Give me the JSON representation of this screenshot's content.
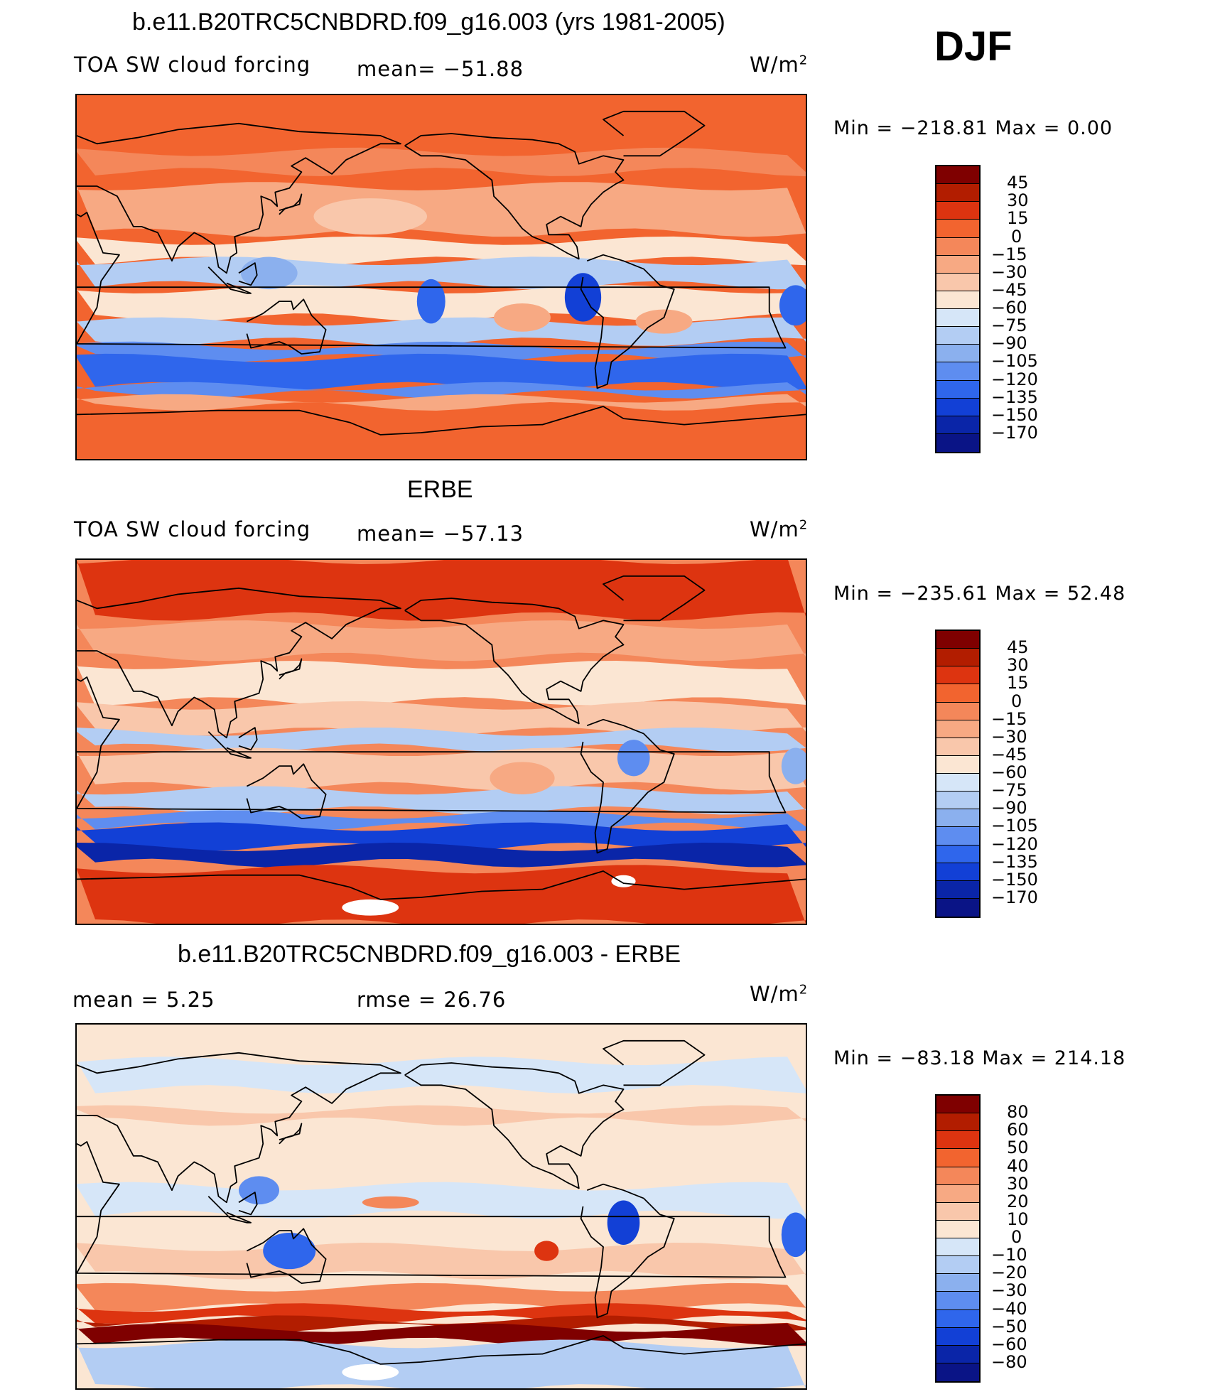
{
  "season": "DJF",
  "units": "W/m",
  "units_sup": "2",
  "panels": [
    {
      "title": "b.e11.B20TRC5CNBDRD.f09_g16.003 (yrs 1981-2005)",
      "left_label": "TOA SW cloud forcing",
      "mid_label": "mean=  −51.88",
      "min_max": "Min  =  −218.81  Max  =     0.00",
      "levels": [
        "45",
        "30",
        "15",
        "0",
        "−15",
        "−30",
        "−45",
        "−60",
        "−75",
        "−90",
        "−105",
        "−120",
        "−135",
        "−150",
        "−170"
      ],
      "colors": [
        "#7f0000",
        "#b21d00",
        "#dd3410",
        "#f2642f",
        "#f4875a",
        "#f7a983",
        "#f9c7ab",
        "#fbe6d3",
        "#d6e6f8",
        "#b3cdf3",
        "#8bb0ee",
        "#5e8df0",
        "#2f66ec",
        "#1240d6",
        "#0a25a8",
        "#0a1486"
      ]
    },
    {
      "title": "ERBE",
      "left_label": "TOA SW cloud forcing",
      "mid_label": "mean=  −57.13",
      "min_max": "Min  =  −235.61  Max  =   52.48",
      "levels": [
        "45",
        "30",
        "15",
        "0",
        "−15",
        "−30",
        "−45",
        "−60",
        "−75",
        "−90",
        "−105",
        "−120",
        "−135",
        "−150",
        "−170"
      ],
      "colors": [
        "#7f0000",
        "#b21d00",
        "#dd3410",
        "#f2642f",
        "#f4875a",
        "#f7a983",
        "#f9c7ab",
        "#fbe6d3",
        "#d6e6f8",
        "#b3cdf3",
        "#8bb0ee",
        "#5e8df0",
        "#2f66ec",
        "#1240d6",
        "#0a25a8",
        "#0a1486"
      ]
    },
    {
      "title": "b.e11.B20TRC5CNBDRD.f09_g16.003 - ERBE",
      "left_label": "mean =      5.25",
      "mid_label": "rmse  =   26.76",
      "min_max": "Min  =  −83.18  Max  =  214.18",
      "levels": [
        "80",
        "60",
        "50",
        "40",
        "30",
        "20",
        "10",
        "0",
        "−10",
        "−20",
        "−30",
        "−40",
        "−50",
        "−60",
        "−80"
      ],
      "colors": [
        "#7f0000",
        "#b21d00",
        "#dd3410",
        "#f2642f",
        "#f4875a",
        "#f7a983",
        "#f9c7ab",
        "#fbe6d3",
        "#d6e6f8",
        "#b3cdf3",
        "#8bb0ee",
        "#5e8df0",
        "#2f66ec",
        "#1240d6",
        "#0a25a8",
        "#0a1486"
      ]
    }
  ],
  "map_fields": {
    "p0": {
      "background": "#f2642f",
      "bands": [
        {
          "color": "#f4875a",
          "lat_top": 62,
          "lat_bottom": 52
        },
        {
          "color": "#f7a983",
          "lat_top": 45,
          "lat_bottom": 22
        },
        {
          "color": "#fbe6d3",
          "lat_top": 18,
          "lat_bottom": 8
        },
        {
          "color": "#b3cdf3",
          "lat_top": 8,
          "lat_bottom": -4
        },
        {
          "color": "#fbe6d3",
          "lat_top": -6,
          "lat_bottom": -20
        },
        {
          "color": "#b3cdf3",
          "lat_top": -22,
          "lat_bottom": -32
        },
        {
          "color": "#5e8df0",
          "lat_top": -34,
          "lat_bottom": -40
        },
        {
          "color": "#2f66ec",
          "lat_top": -40,
          "lat_bottom": -54
        },
        {
          "color": "#5e8df0",
          "lat_top": -54,
          "lat_bottom": -58
        },
        {
          "color": "#f7a983",
          "lat_top": -60,
          "lat_bottom": -64
        }
      ],
      "blobs": [
        {
          "color": "#2f66ec",
          "lon": 205,
          "lat": -12,
          "rx": 7,
          "ry": 11
        },
        {
          "color": "#1240d6",
          "lon": 280,
          "lat": -10,
          "rx": 9,
          "ry": 12
        },
        {
          "color": "#2f66ec",
          "lon": 25,
          "lat": -14,
          "rx": 8,
          "ry": 10
        },
        {
          "color": "#8bb0ee",
          "lon": 125,
          "lat": 2,
          "rx": 14,
          "ry": 8
        },
        {
          "color": "#f7a983",
          "lon": 250,
          "lat": -20,
          "rx": 14,
          "ry": 7
        },
        {
          "color": "#f7a983",
          "lon": 320,
          "lat": -22,
          "rx": 14,
          "ry": 6
        },
        {
          "color": "#f9c7ab",
          "lon": 175,
          "lat": 30,
          "rx": 28,
          "ry": 9
        }
      ]
    },
    "p1": {
      "background": "#f4875a",
      "bands": [
        {
          "color": "#dd3410",
          "lat_top": 90,
          "lat_bottom": 62
        },
        {
          "color": "#f7a983",
          "lat_top": 58,
          "lat_bottom": 42
        },
        {
          "color": "#fbe6d3",
          "lat_top": 38,
          "lat_bottom": 20
        },
        {
          "color": "#f9c7ab",
          "lat_top": 18,
          "lat_bottom": 5
        },
        {
          "color": "#b3cdf3",
          "lat_top": 5,
          "lat_bottom": -3
        },
        {
          "color": "#f9c7ab",
          "lat_top": -5,
          "lat_bottom": -22
        },
        {
          "color": "#b3cdf3",
          "lat_top": -24,
          "lat_bottom": -34
        },
        {
          "color": "#5e8df0",
          "lat_top": -36,
          "lat_bottom": -42
        },
        {
          "color": "#1240d6",
          "lat_top": -42,
          "lat_bottom": -52
        },
        {
          "color": "#0a25a8",
          "lat_top": -52,
          "lat_bottom": -60
        },
        {
          "color": "#dd3410",
          "lat_top": -63,
          "lat_bottom": -90
        }
      ],
      "blobs": [
        {
          "color": "#5e8df0",
          "lon": 305,
          "lat": -8,
          "rx": 8,
          "ry": 9
        },
        {
          "color": "#8bb0ee",
          "lon": 25,
          "lat": -12,
          "rx": 7,
          "ry": 9
        },
        {
          "color": "#f7a983",
          "lon": 250,
          "lat": -18,
          "rx": 16,
          "ry": 8
        },
        {
          "color": "#ffffff",
          "lon": 175,
          "lat": -82,
          "rx": 14,
          "ry": 4
        },
        {
          "color": "#ffffff",
          "lon": 300,
          "lat": -69,
          "rx": 6,
          "ry": 3
        }
      ]
    },
    "p2": {
      "background": "#fbe6d3",
      "bands": [
        {
          "color": "#d6e6f8",
          "lat_top": 72,
          "lat_bottom": 58
        },
        {
          "color": "#f9c7ab",
          "lat_top": 48,
          "lat_bottom": 42
        },
        {
          "color": "#d6e6f8",
          "lat_top": 10,
          "lat_bottom": -4
        },
        {
          "color": "#f9c7ab",
          "lat_top": -20,
          "lat_bottom": -34
        },
        {
          "color": "#f4875a",
          "lat_top": -40,
          "lat_bottom": -50
        },
        {
          "color": "#dd3410",
          "lat_top": -50,
          "lat_bottom": -56
        },
        {
          "color": "#b21d00",
          "lat_top": -56,
          "lat_bottom": -60
        },
        {
          "color": "#7f0000",
          "lat_top": -60,
          "lat_bottom": -67
        },
        {
          "color": "#b3cdf3",
          "lat_top": -68,
          "lat_bottom": -90
        }
      ],
      "blobs": [
        {
          "color": "#2f66ec",
          "lon": 25,
          "lat": -14,
          "rx": 7,
          "ry": 11
        },
        {
          "color": "#2f66ec",
          "lon": 135,
          "lat": -22,
          "rx": 13,
          "ry": 9
        },
        {
          "color": "#1240d6",
          "lon": 300,
          "lat": -8,
          "rx": 8,
          "ry": 11
        },
        {
          "color": "#dd3410",
          "lon": 262,
          "lat": -22,
          "rx": 6,
          "ry": 5
        },
        {
          "color": "#f4875a",
          "lon": 185,
          "lat": 2,
          "rx": 14,
          "ry": 3
        },
        {
          "color": "#5e8df0",
          "lon": 120,
          "lat": 8,
          "rx": 10,
          "ry": 7
        },
        {
          "color": "#ffffff",
          "lon": 175,
          "lat": -82,
          "rx": 14,
          "ry": 4
        }
      ]
    }
  }
}
